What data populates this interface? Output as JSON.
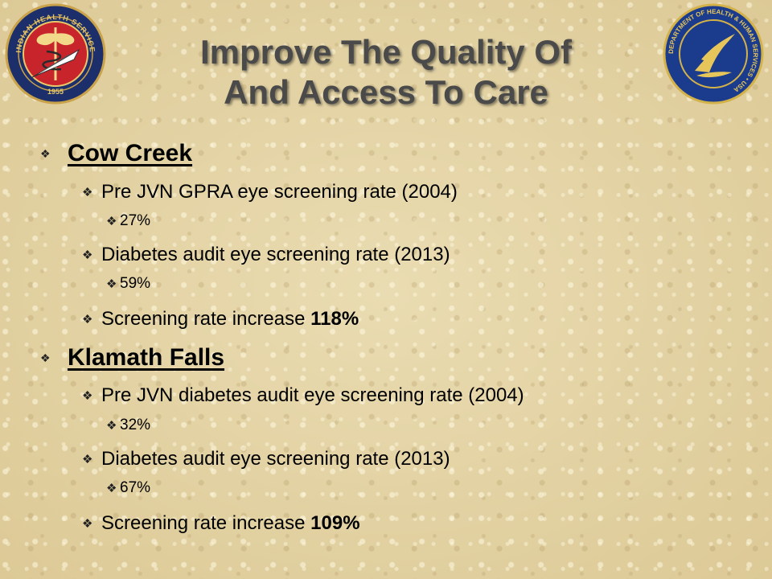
{
  "title": {
    "line1": "Improve The Quality Of",
    "line2": "And Access To Care"
  },
  "logos": {
    "left": {
      "icon": "indian-health-service-seal",
      "top_text": "INDIAN HEALTH SERVICE",
      "year": "1955"
    },
    "right": {
      "icon": "hhs-seal",
      "text": "DEPARTMENT OF HEALTH & HUMAN SERVICES • USA"
    }
  },
  "bullet_glyph": "❖",
  "sections": [
    {
      "heading": "Cow Creek",
      "items": [
        {
          "text": "Pre JVN GPRA eye screening rate (2004)",
          "value": "27%"
        },
        {
          "text": "Diabetes audit eye screening rate (2013)",
          "value": "59%"
        },
        {
          "text": "Screening rate increase ",
          "emphasis": "118%"
        }
      ]
    },
    {
      "heading": "Klamath Falls",
      "items": [
        {
          "text": "Pre JVN diabetes audit eye screening rate (2004)",
          "value": "32%"
        },
        {
          "text": "Diabetes audit eye screening rate (2013)",
          "value": "67%"
        },
        {
          "text": "Screening rate increase ",
          "emphasis": "109%"
        }
      ]
    }
  ]
}
